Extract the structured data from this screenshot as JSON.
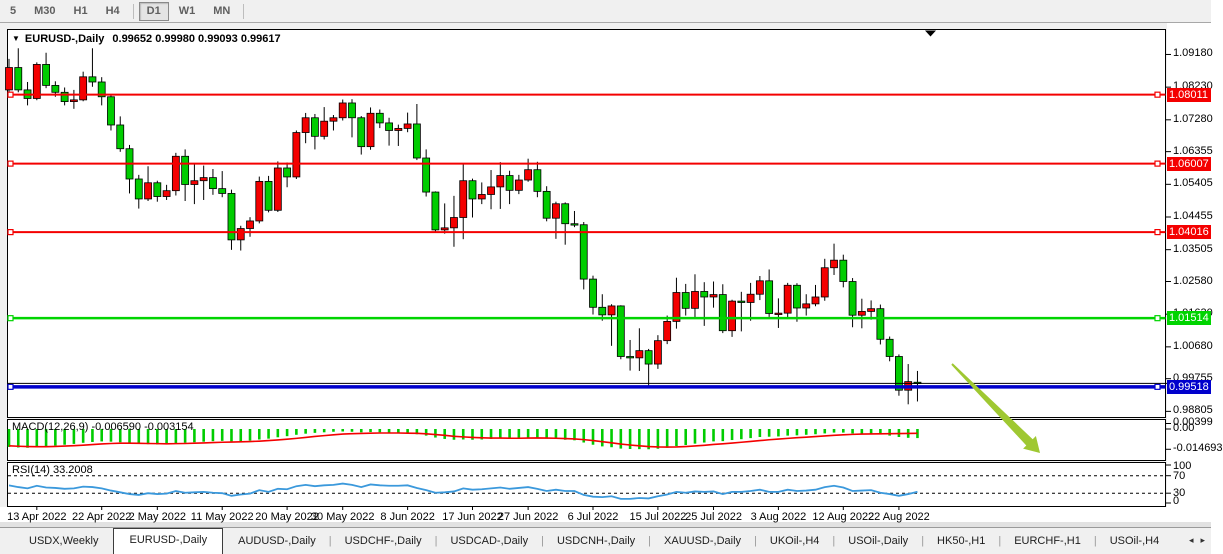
{
  "toolbar": {
    "items": [
      {
        "type": "btn",
        "label": "5",
        "active": false
      },
      {
        "type": "btn",
        "label": "M30",
        "active": false
      },
      {
        "type": "btn",
        "label": "H1",
        "active": false
      },
      {
        "type": "btn",
        "label": "H4",
        "active": false
      },
      {
        "type": "sep"
      },
      {
        "type": "btn",
        "label": "D1",
        "active": true
      },
      {
        "type": "btn",
        "label": "W1",
        "active": false
      },
      {
        "type": "btn",
        "label": "MN",
        "active": false
      },
      {
        "type": "sep"
      }
    ]
  },
  "chart": {
    "symbol_label": "EURUSD-,Daily",
    "ohlc_text": "0.99652 0.99980 0.99093 0.99617"
  },
  "price_axis": {
    "ticks": [
      {
        "label": "1.09180",
        "value": 1.0918
      },
      {
        "label": "1.08230",
        "value": 1.0823
      },
      {
        "label": "1.07280",
        "value": 1.0728
      },
      {
        "label": "1.06355",
        "value": 1.06355
      },
      {
        "label": "1.05405",
        "value": 1.05405
      },
      {
        "label": "1.04455",
        "value": 1.04455
      },
      {
        "label": "1.03505",
        "value": 1.03505
      },
      {
        "label": "1.02580",
        "value": 1.0258
      },
      {
        "label": "1.01630",
        "value": 1.0163
      },
      {
        "label": "1.00680",
        "value": 1.0068
      },
      {
        "label": "0.99755",
        "value": 0.99755
      },
      {
        "label": "0.98805",
        "value": 0.98805
      }
    ]
  },
  "hlines": [
    {
      "label": "1.08011",
      "value": 1.08011,
      "color": "#f40000",
      "thickness": 2
    },
    {
      "label": "1.06007",
      "value": 1.06007,
      "color": "#f40000",
      "thickness": 2
    },
    {
      "label": "1.04016",
      "value": 1.04016,
      "color": "#f40000",
      "thickness": 2
    },
    {
      "label": "1.01514",
      "value": 1.01514,
      "color": "#00d400",
      "thickness": 2.5
    },
    {
      "label": "0.99518",
      "value": 0.99518,
      "color": "#0000cc",
      "thickness": 3.5
    }
  ],
  "current_price_line": {
    "value": 0.99617,
    "color": "#000000"
  },
  "indicators": {
    "macd": {
      "label": "MACD(12,26,9)",
      "values_text": "-0.006590 -0.003154",
      "axis": [
        {
          "label": "0.00399",
          "value": 0.00399
        },
        {
          "label": "0.00",
          "value": 0
        },
        {
          "label": "-0.014693",
          "value": -0.014693
        }
      ]
    },
    "rsi": {
      "label": "RSI(14)",
      "value_text": "33.2008",
      "levels": [
        70,
        30
      ],
      "axis": [
        {
          "label": "100",
          "value": 100
        },
        {
          "label": "70",
          "value": 70
        },
        {
          "label": "30",
          "value": 30
        },
        {
          "label": "0",
          "value": 0
        }
      ]
    }
  },
  "date_axis": [
    {
      "label": "13 Apr 2022",
      "bar": 3
    },
    {
      "label": "22 Apr 2022",
      "bar": 10
    },
    {
      "label": "2 May 2022",
      "bar": 16
    },
    {
      "label": "11 May 2022",
      "bar": 23
    },
    {
      "label": "20 May 2022",
      "bar": 30
    },
    {
      "label": "30 May 2022",
      "bar": 36
    },
    {
      "label": "8 Jun 2022",
      "bar": 43
    },
    {
      "label": "17 Jun 2022",
      "bar": 50
    },
    {
      "label": "27 Jun 2022",
      "bar": 56
    },
    {
      "label": "6 Jul 2022",
      "bar": 63
    },
    {
      "label": "15 Jul 2022",
      "bar": 70
    },
    {
      "label": "25 Jul 2022",
      "bar": 76
    },
    {
      "label": "3 Aug 2022",
      "bar": 83
    },
    {
      "label": "12 Aug 2022",
      "bar": 90
    },
    {
      "label": "22 Aug 2022",
      "bar": 96
    }
  ],
  "tabs": {
    "items": [
      "USDX,Weekly",
      "EURUSD-,Daily",
      "AUDUSD-,Daily",
      "USDCHF-,Daily",
      "USDCAD-,Daily",
      "USDCNH-,Daily",
      "XAUUSD-,Daily",
      "UKOil-,H4",
      "USOil-,Daily",
      "HK50-,H1",
      "EURCHF-,H1",
      "USOil-,H4"
    ],
    "active_index": 1,
    "scroll_left_icon": "◂",
    "scroll_right_icon": "▸"
  },
  "colors": {
    "candle_up": "#f40000",
    "candle_down": "#00cd00",
    "macd_hist": "#00cc00",
    "macd_signal": "#f40000",
    "rsi_line": "#3b99dc",
    "arrow": "#9fc832"
  },
  "chart_data": {
    "type": "candlestick",
    "symbol": "EURUSD",
    "timeframe": "Daily",
    "title": "EURUSD-,Daily 0.99652 0.99980 0.99093 0.99617",
    "current_bar": {
      "open": 0.99652,
      "high": 0.9998,
      "low": 0.99093,
      "close": 0.99617
    },
    "up_color_meaning": "bullish (close>open) drawn red, bearish drawn green",
    "price_range_visible": [
      0.9864,
      1.0992
    ],
    "horizontal_levels": [
      1.08011,
      1.06007,
      1.04016,
      1.01514,
      0.99518
    ],
    "candles": [
      [
        "8 Apr",
        1.0815,
        1.0905,
        1.0805,
        1.088
      ],
      [
        "11 Apr",
        1.088,
        1.0936,
        1.0808,
        1.0815
      ],
      [
        "12 Apr",
        1.0815,
        1.0838,
        1.077,
        1.079
      ],
      [
        "13 Apr",
        1.079,
        1.0895,
        1.0785,
        1.0889
      ],
      [
        "14 Apr",
        1.0889,
        1.0923,
        1.082,
        1.0828
      ],
      [
        "15 Apr",
        1.0828,
        1.084,
        1.0795,
        1.0808
      ],
      [
        "18 Apr",
        1.0808,
        1.0822,
        1.077,
        1.0781
      ],
      [
        "19 Apr",
        1.0781,
        1.0815,
        1.076,
        1.0786
      ],
      [
        "20 Apr",
        1.0786,
        1.0868,
        1.0782,
        1.0853
      ],
      [
        "21 Apr",
        1.0853,
        1.0936,
        1.0824,
        1.0838
      ],
      [
        "22 Apr",
        1.0838,
        1.0852,
        1.077,
        1.0795
      ],
      [
        "25 Apr",
        1.0795,
        1.0802,
        1.0697,
        1.0713
      ],
      [
        "26 Apr",
        1.0713,
        1.0738,
        1.0635,
        1.0644
      ],
      [
        "27 Apr",
        1.0644,
        1.0655,
        1.0514,
        1.0556
      ],
      [
        "28 Apr",
        1.0556,
        1.0568,
        1.047,
        1.0498
      ],
      [
        "29 Apr",
        1.0498,
        1.0593,
        1.0492,
        1.0545
      ],
      [
        "2 May",
        1.0545,
        1.0551,
        1.049,
        1.0505
      ],
      [
        "3 May",
        1.0505,
        1.0539,
        1.0495,
        1.0522
      ],
      [
        "4 May",
        1.0522,
        1.0632,
        1.0508,
        1.0622
      ],
      [
        "5 May",
        1.0622,
        1.0642,
        1.0492,
        1.054
      ],
      [
        "6 May",
        1.054,
        1.0599,
        1.0483,
        1.0551
      ],
      [
        "9 May",
        1.0551,
        1.0595,
        1.0495,
        1.056
      ],
      [
        "10 May",
        1.056,
        1.0585,
        1.051,
        1.0528
      ],
      [
        "11 May",
        1.0528,
        1.0579,
        1.0503,
        1.0514
      ],
      [
        "12 May",
        1.0514,
        1.0525,
        1.035,
        1.0379
      ],
      [
        "13 May",
        1.0379,
        1.042,
        1.0348,
        1.0412
      ],
      [
        "16 May",
        1.0412,
        1.0445,
        1.0388,
        1.0434
      ],
      [
        "17 May",
        1.0434,
        1.0563,
        1.0427,
        1.0549
      ],
      [
        "18 May",
        1.0549,
        1.0565,
        1.0459,
        1.0465
      ],
      [
        "19 May",
        1.0465,
        1.0607,
        1.046,
        1.0588
      ],
      [
        "20 May",
        1.0588,
        1.0604,
        1.0532,
        1.0562
      ],
      [
        "23 May",
        1.0562,
        1.0697,
        1.0556,
        1.0691
      ],
      [
        "24 May",
        1.0691,
        1.0748,
        1.066,
        1.0734
      ],
      [
        "25 May",
        1.0734,
        1.0745,
        1.0642,
        1.068
      ],
      [
        "26 May",
        1.068,
        1.0765,
        1.0671,
        1.0724
      ],
      [
        "27 May",
        1.0724,
        1.0742,
        1.0697,
        1.0734
      ],
      [
        "30 May",
        1.0734,
        1.0787,
        1.0726,
        1.0777
      ],
      [
        "31 May",
        1.0777,
        1.0788,
        1.0677,
        1.0734
      ],
      [
        "1 Jun",
        1.0734,
        1.0739,
        1.0627,
        1.065
      ],
      [
        "2 Jun",
        1.065,
        1.0764,
        1.0641,
        1.0747
      ],
      [
        "3 Jun",
        1.0747,
        1.0758,
        1.0704,
        1.0719
      ],
      [
        "6 Jun",
        1.0719,
        1.0734,
        1.0653,
        1.0697
      ],
      [
        "7 Jun",
        1.0697,
        1.0714,
        1.0652,
        1.0703
      ],
      [
        "8 Jun",
        1.0703,
        1.0749,
        1.0692,
        1.0716
      ],
      [
        "9 Jun",
        1.0716,
        1.0774,
        1.0611,
        1.0617
      ],
      [
        "10 Jun",
        1.0617,
        1.0642,
        1.0505,
        1.0518
      ],
      [
        "13 Jun",
        1.0518,
        1.052,
        1.0399,
        1.0408
      ],
      [
        "14 Jun",
        1.0408,
        1.0485,
        1.0397,
        1.0414
      ],
      [
        "15 Jun",
        1.0414,
        1.0507,
        1.0359,
        1.0444
      ],
      [
        "16 Jun",
        1.0444,
        1.0601,
        1.0381,
        1.0551
      ],
      [
        "17 Jun",
        1.0551,
        1.0557,
        1.0444,
        1.0498
      ],
      [
        "20 Jun",
        1.0498,
        1.0546,
        1.0483,
        1.0511
      ],
      [
        "21 Jun",
        1.0511,
        1.0582,
        1.0468,
        1.0533
      ],
      [
        "22 Jun",
        1.0533,
        1.0605,
        1.0469,
        1.0566
      ],
      [
        "23 Jun",
        1.0566,
        1.058,
        1.0483,
        1.0523
      ],
      [
        "24 Jun",
        1.0523,
        1.0568,
        1.0512,
        1.0553
      ],
      [
        "27 Jun",
        1.0553,
        1.0615,
        1.0548,
        1.0583
      ],
      [
        "28 Jun",
        1.0583,
        1.0606,
        1.0503,
        1.052
      ],
      [
        "29 Jun",
        1.052,
        1.0535,
        1.0433,
        1.0442
      ],
      [
        "30 Jun",
        1.0442,
        1.049,
        1.0382,
        1.0484
      ],
      [
        "1 Jul",
        1.0484,
        1.0488,
        1.0365,
        1.0426
      ],
      [
        "4 Jul",
        1.0426,
        1.0463,
        1.0416,
        1.0423
      ],
      [
        "5 Jul",
        1.0423,
        1.0431,
        1.0235,
        1.0265
      ],
      [
        "6 Jul",
        1.0265,
        1.0275,
        1.0162,
        1.0183
      ],
      [
        "7 Jul",
        1.0183,
        1.0221,
        1.0144,
        1.0161
      ],
      [
        "8 Jul",
        1.0161,
        1.0192,
        1.0071,
        1.0187
      ],
      [
        "11 Jul",
        1.0187,
        1.0189,
        1.0032,
        1.004
      ],
      [
        "12 Jul",
        1.004,
        1.0088,
        0.9999,
        1.0036
      ],
      [
        "13 Jul",
        1.0036,
        1.0122,
        0.9998,
        1.0057
      ],
      [
        "14 Jul",
        1.0057,
        1.0062,
        0.9952,
        1.0018
      ],
      [
        "15 Jul",
        1.0018,
        1.0102,
        1.0004,
        1.0086
      ],
      [
        "18 Jul",
        1.0086,
        1.0159,
        1.0076,
        1.0142
      ],
      [
        "19 Jul",
        1.0142,
        1.0269,
        1.0121,
        1.0226
      ],
      [
        "20 Jul",
        1.0226,
        1.0251,
        1.0159,
        1.018
      ],
      [
        "21 Jul",
        1.018,
        1.0279,
        1.0153,
        1.0229
      ],
      [
        "22 Jul",
        1.0229,
        1.0256,
        1.0129,
        1.0213
      ],
      [
        "25 Jul",
        1.0213,
        1.0258,
        1.0182,
        1.022
      ],
      [
        "26 Jul",
        1.022,
        1.025,
        1.0108,
        1.0115
      ],
      [
        "27 Jul",
        1.0115,
        1.0205,
        1.0097,
        1.0201
      ],
      [
        "28 Jul",
        1.0201,
        1.0228,
        1.0113,
        1.0197
      ],
      [
        "29 Jul",
        1.0197,
        1.0254,
        1.0144,
        1.0221
      ],
      [
        "1 Aug",
        1.0221,
        1.0274,
        1.0204,
        1.026
      ],
      [
        "2 Aug",
        1.026,
        1.0293,
        1.0155,
        1.0165
      ],
      [
        "3 Aug",
        1.0165,
        1.0209,
        1.0123,
        1.0166
      ],
      [
        "4 Aug",
        1.0166,
        1.0254,
        1.0151,
        1.0247
      ],
      [
        "5 Aug",
        1.0247,
        1.0253,
        1.0141,
        1.0181
      ],
      [
        "8 Aug",
        1.0181,
        1.0221,
        1.0159,
        1.0193
      ],
      [
        "9 Aug",
        1.0193,
        1.0248,
        1.0186,
        1.0213
      ],
      [
        "10 Aug",
        1.0213,
        1.0324,
        1.0202,
        1.0298
      ],
      [
        "11 Aug",
        1.0298,
        1.0368,
        1.0277,
        1.032
      ],
      [
        "12 Aug",
        1.032,
        1.0336,
        1.0241,
        1.0258
      ],
      [
        "15 Aug",
        1.0258,
        1.0268,
        1.0125,
        1.016
      ],
      [
        "16 Aug",
        1.016,
        1.0208,
        1.0122,
        1.0171
      ],
      [
        "17 Aug",
        1.0171,
        1.0203,
        1.0147,
        1.0179
      ],
      [
        "18 Aug",
        1.0179,
        1.0191,
        1.0075,
        1.009
      ],
      [
        "19 Aug",
        1.009,
        1.0098,
        1.0026,
        1.004
      ],
      [
        "22 Aug",
        1.004,
        1.0046,
        0.9926,
        0.9942
      ],
      [
        "23 Aug",
        0.9942,
        1.0018,
        0.9901,
        0.9967
      ],
      [
        "24 Aug",
        0.99652,
        0.9998,
        0.99093,
        0.99617
      ]
    ],
    "macd": {
      "params": [
        12,
        26,
        9
      ],
      "current_macd": -0.00659,
      "current_signal": -0.003154,
      "axis_min": -0.014693,
      "axis_max": 0.00399,
      "histogram_x1000": [
        -13.0,
        -13.4,
        -13.6,
        -13.2,
        -12.6,
        -12.0,
        -11.4,
        -10.8,
        -10.0,
        -9.4,
        -9.0,
        -9.2,
        -9.6,
        -10.2,
        -10.8,
        -11.0,
        -11.2,
        -11.0,
        -10.4,
        -10.0,
        -9.6,
        -9.2,
        -8.8,
        -8.6,
        -9.0,
        -8.8,
        -8.4,
        -7.6,
        -7.0,
        -6.0,
        -5.2,
        -4.2,
        -3.4,
        -2.8,
        -2.4,
        -2.0,
        -1.8,
        -2.0,
        -2.4,
        -2.2,
        -2.4,
        -2.8,
        -3.0,
        -3.2,
        -3.8,
        -4.8,
        -6.2,
        -7.2,
        -7.8,
        -7.6,
        -7.8,
        -7.6,
        -7.2,
        -6.8,
        -6.8,
        -6.6,
        -6.2,
        -6.4,
        -7.0,
        -7.2,
        -7.8,
        -8.2,
        -9.8,
        -11.4,
        -12.6,
        -13.2,
        -14.2,
        -14.5,
        -14.6,
        -14.69,
        -14.3,
        -13.6,
        -12.4,
        -11.6,
        -10.6,
        -9.8,
        -9.0,
        -8.8,
        -8.0,
        -7.4,
        -6.6,
        -5.8,
        -5.6,
        -5.4,
        -4.8,
        -4.6,
        -4.2,
        -3.8,
        -3.2,
        -2.6,
        -2.6,
        -3.2,
        -3.4,
        -3.4,
        -4.0,
        -4.8,
        -5.8,
        -6.4,
        -6.59
      ],
      "signal_x1000": [
        -12.2,
        -12.5,
        -12.7,
        -12.8,
        -12.8,
        -12.6,
        -12.4,
        -12.1,
        -11.7,
        -11.3,
        -10.8,
        -10.5,
        -10.3,
        -10.3,
        -10.4,
        -10.5,
        -10.6,
        -10.7,
        -10.6,
        -10.5,
        -10.3,
        -10.1,
        -9.8,
        -9.6,
        -9.5,
        -9.3,
        -9.1,
        -8.8,
        -8.4,
        -7.9,
        -7.4,
        -6.8,
        -6.1,
        -5.4,
        -4.8,
        -4.2,
        -3.7,
        -3.4,
        -3.2,
        -3.0,
        -2.9,
        -2.9,
        -2.9,
        -3.0,
        -3.1,
        -3.5,
        -4.0,
        -4.6,
        -5.3,
        -5.7,
        -6.1,
        -6.4,
        -6.6,
        -6.6,
        -6.7,
        -6.7,
        -6.6,
        -6.5,
        -6.6,
        -6.7,
        -6.9,
        -7.2,
        -7.7,
        -8.4,
        -9.2,
        -10.0,
        -10.9,
        -11.6,
        -12.2,
        -12.7,
        -13.0,
        -13.1,
        -13.0,
        -12.7,
        -12.3,
        -11.8,
        -11.2,
        -10.7,
        -10.2,
        -9.6,
        -9.0,
        -8.4,
        -7.8,
        -7.3,
        -6.8,
        -6.3,
        -5.9,
        -5.5,
        -5.0,
        -4.6,
        -4.2,
        -3.9,
        -3.7,
        -3.6,
        -3.5,
        -3.4,
        -3.3,
        -3.2,
        -3.15
      ]
    },
    "rsi": {
      "period": 14,
      "current": 33.2008,
      "values": [
        48,
        44,
        41,
        47,
        43,
        42,
        40,
        41,
        45,
        44,
        41,
        36,
        32,
        28,
        26,
        30,
        28,
        29,
        35,
        31,
        32,
        33,
        31,
        30,
        24,
        27,
        29,
        37,
        33,
        40,
        39,
        46,
        49,
        46,
        48,
        49,
        52,
        49,
        44,
        50,
        48,
        47,
        47,
        48,
        42,
        37,
        31,
        32,
        34,
        41,
        38,
        39,
        41,
        43,
        40,
        42,
        44,
        40,
        35,
        38,
        35,
        35,
        26,
        22,
        21,
        23,
        17,
        17,
        19,
        18,
        23,
        27,
        33,
        31,
        34,
        33,
        34,
        28,
        33,
        33,
        35,
        38,
        33,
        33,
        38,
        35,
        36,
        38,
        44,
        47,
        43,
        35,
        36,
        37,
        31,
        28,
        24,
        28,
        33.2
      ]
    }
  }
}
